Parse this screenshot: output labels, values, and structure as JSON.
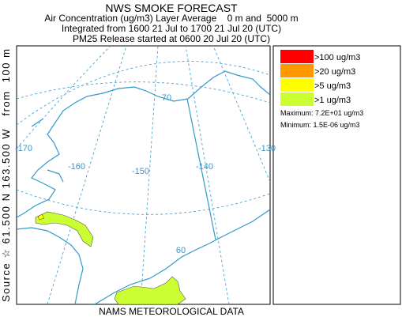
{
  "header": {
    "title": "NWS SMOKE FORECAST",
    "lines": [
      "Air Concentration (ug/m3) Layer Average    0 m and  5000 m",
      "Integrated from 1600 21 Jul to 1700 21 Jul 20 (UTC)",
      "PM25 Release started at 0600 20 Jul 20 (UTC)"
    ]
  },
  "legend": {
    "entries": [
      {
        "label": ">100 ug/m3",
        "color": "#ff0000"
      },
      {
        "label": ">20 ug/m3",
        "color": "#ff9900"
      },
      {
        "label": ">5 ug/m3",
        "color": "#ffff00"
      },
      {
        "label": ">1 ug/m3",
        "color": "#ccff33"
      }
    ],
    "maximum": "Maximum: 7.2E+01 ug/m3",
    "minimum": "Minimum: 1.5E-06 ug/m3"
  },
  "source_label": "Source ☆ 61.500 N 163.500 W   from  100 m",
  "footer": "NAMS METEOROLOGICAL DATA",
  "graticule_labels": [
    "-170",
    "-160",
    "-150",
    "-140",
    "-130",
    "70",
    "60"
  ]
}
